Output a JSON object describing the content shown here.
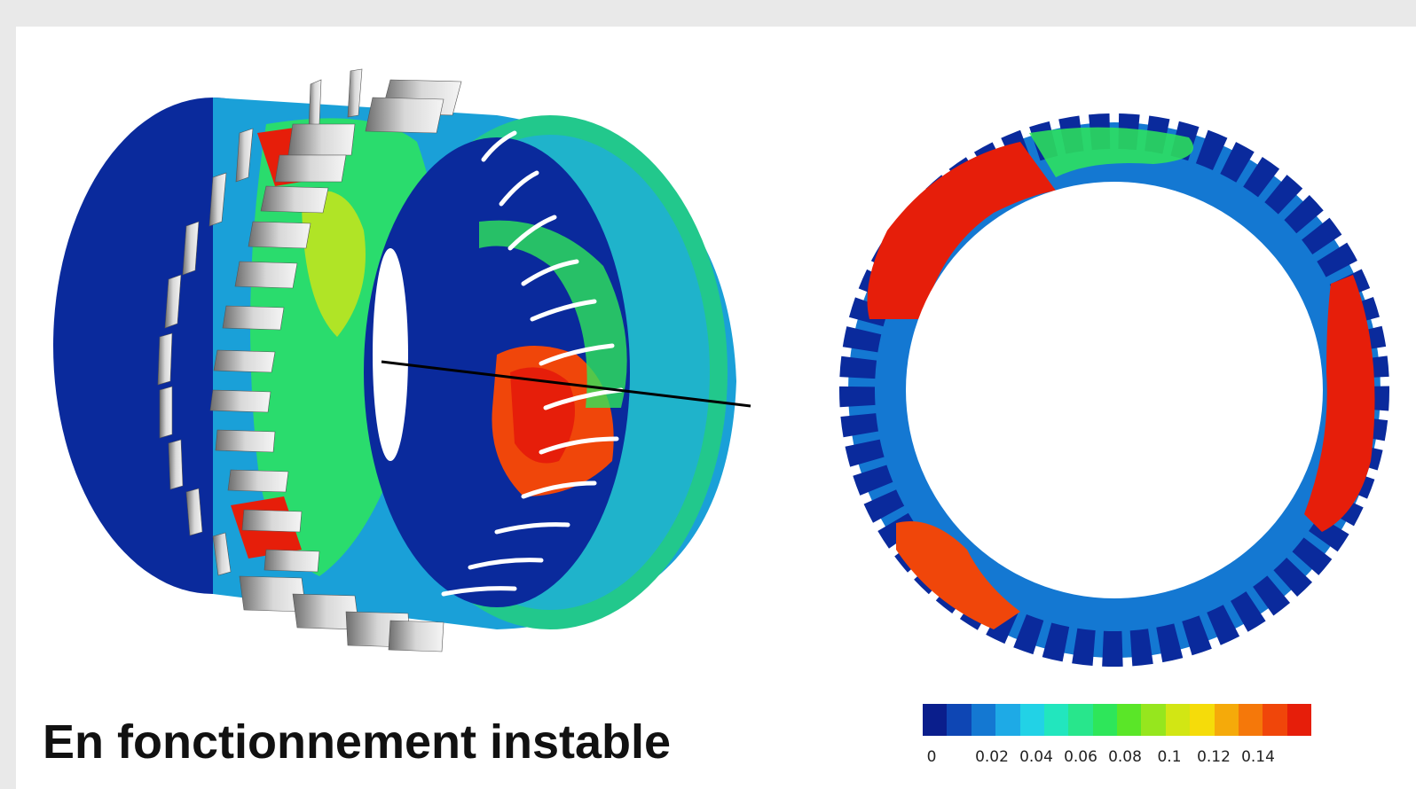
{
  "caption": "En fonctionnement instable",
  "colorbar": {
    "ticks": [
      "0",
      "0.02",
      "0.04",
      "0.06",
      "0.08",
      "0.1",
      "0.12",
      "0.14"
    ],
    "colors": [
      "#0a1e8c",
      "#0e46b4",
      "#1478d2",
      "#1eaae6",
      "#22d2e6",
      "#22e6be",
      "#28e68c",
      "#2ee65a",
      "#5ae628",
      "#96e61e",
      "#d2e614",
      "#f5dc0a",
      "#f5aa0a",
      "#f5780a",
      "#f0460a",
      "#e61e0a"
    ]
  },
  "colors": {
    "background": "#e9e9e9",
    "deep_blue": "#0a1e8c",
    "red": "#e61e0a",
    "green": "#2ee65a",
    "blade": "#c8c8c8"
  }
}
